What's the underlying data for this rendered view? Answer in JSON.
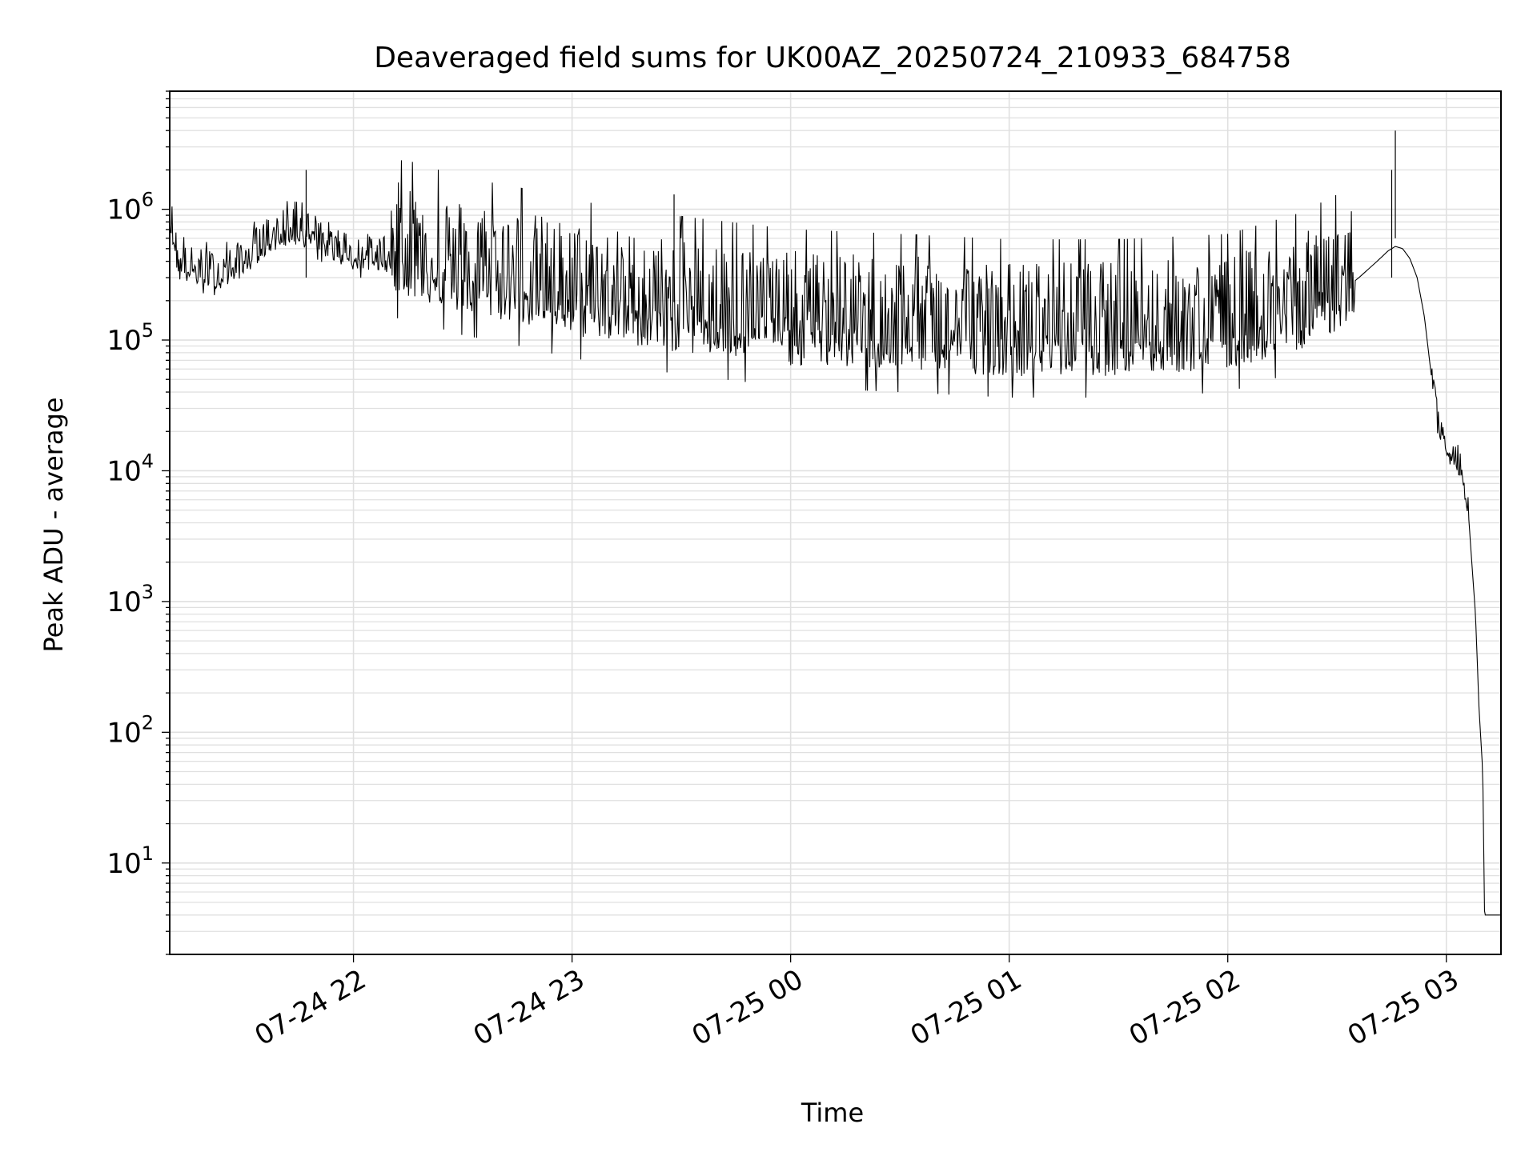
{
  "chart_data": {
    "type": "line",
    "title": "Deaveraged field sums for UK00AZ_20250724_210933_684758",
    "xlabel": "Time",
    "ylabel": "Peak ADU - average",
    "y_scale": "log",
    "ylim": [
      2,
      8000000
    ],
    "xlim": [
      "2025-07-24 21:09:33",
      "2025-07-25 03:15:00"
    ],
    "grid": true,
    "x_ticks": [
      {
        "time": "2025-07-24 22:00",
        "label": "07-24 22"
      },
      {
        "time": "2025-07-24 23:00",
        "label": "07-24 23"
      },
      {
        "time": "2025-07-25 00:00",
        "label": "07-25 00"
      },
      {
        "time": "2025-07-25 01:00",
        "label": "07-25 01"
      },
      {
        "time": "2025-07-25 02:00",
        "label": "07-25 02"
      },
      {
        "time": "2025-07-25 03:00",
        "label": "07-25 03"
      }
    ],
    "y_ticks": [
      {
        "value": 10,
        "base": "10",
        "exp": "1"
      },
      {
        "value": 100,
        "base": "10",
        "exp": "2"
      },
      {
        "value": 1000,
        "base": "10",
        "exp": "3"
      },
      {
        "value": 10000,
        "base": "10",
        "exp": "4"
      },
      {
        "value": 100000,
        "base": "10",
        "exp": "5"
      },
      {
        "value": 1000000,
        "base": "10",
        "exp": "6"
      }
    ],
    "series": [
      {
        "color": "#000000",
        "points": [
          [
            "2025-07-24 21:09:33",
            900000
          ],
          [
            "2025-07-24 21:12",
            350000
          ],
          [
            "2025-07-24 21:18",
            320000
          ],
          [
            "2025-07-24 21:24",
            300000
          ],
          [
            "2025-07-24 21:30",
            380000
          ],
          [
            "2025-07-24 21:36",
            550000
          ],
          [
            "2025-07-24 21:42",
            650000
          ],
          [
            "2025-07-24 21:48",
            620000
          ],
          [
            "2025-07-24 21:54",
            500000
          ],
          [
            "2025-07-24 22:00",
            420000
          ],
          [
            "2025-07-24 22:15",
            400000
          ],
          [
            "2025-07-24 22:30",
            300000
          ],
          [
            "2025-07-24 22:45",
            250000
          ],
          [
            "2025-07-24 23:00",
            200000
          ],
          [
            "2025-07-24 23:30",
            150000
          ],
          [
            "2025-07-25 00:00",
            120000
          ],
          [
            "2025-07-25 00:30",
            110000
          ],
          [
            "2025-07-25 01:00",
            100000
          ],
          [
            "2025-07-25 01:30",
            100000
          ],
          [
            "2025-07-25 02:00",
            110000
          ],
          [
            "2025-07-25 02:20",
            160000
          ],
          [
            "2025-07-25 02:30",
            220000
          ],
          [
            "2025-07-25 02:36",
            300000
          ],
          [
            "2025-07-25 02:41",
            400000
          ],
          [
            "2025-07-25 02:44",
            480000
          ],
          [
            "2025-07-25 02:46",
            520000
          ],
          [
            "2025-07-25 02:48",
            500000
          ],
          [
            "2025-07-25 02:50",
            420000
          ],
          [
            "2025-07-25 02:52",
            300000
          ],
          [
            "2025-07-25 02:54",
            150000
          ],
          [
            "2025-07-25 02:56",
            50000
          ],
          [
            "2025-07-25 02:58",
            20000
          ],
          [
            "2025-07-25 03:00",
            14000
          ],
          [
            "2025-07-25 03:04",
            10000
          ],
          [
            "2025-07-25 03:06",
            5000
          ],
          [
            "2025-07-25 03:07",
            2000
          ],
          [
            "2025-07-25 03:08",
            800
          ],
          [
            "2025-07-25 03:09",
            150
          ],
          [
            "2025-07-25 03:10",
            50
          ],
          [
            "2025-07-25 03:10:30",
            4
          ],
          [
            "2025-07-25 03:15",
            4
          ]
        ],
        "spikes": [
          {
            "time": "2025-07-24 21:47",
            "value": 2000000
          },
          {
            "time": "2025-07-24 23:28",
            "value": 1300000
          },
          {
            "time": "2025-07-25 02:46",
            "value": 4000000
          },
          {
            "time": "2025-07-25 02:45",
            "value": 2000000
          }
        ]
      }
    ]
  }
}
